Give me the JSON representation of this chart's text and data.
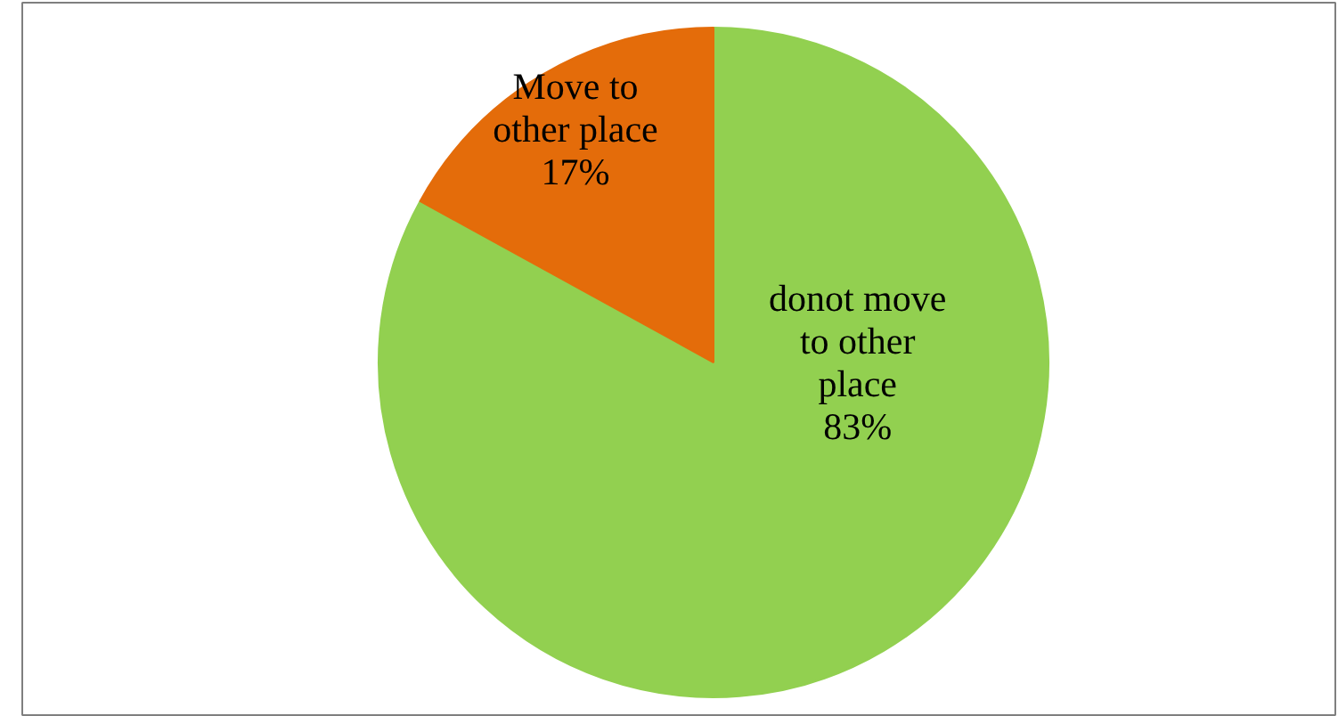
{
  "chart_data": {
    "type": "pie",
    "categories": [
      "donot move to other place",
      "Move to other place"
    ],
    "values": [
      83,
      17
    ],
    "colors": [
      "#92d050",
      "#e46c0a"
    ],
    "value_labels": [
      "83%",
      "17%"
    ]
  }
}
